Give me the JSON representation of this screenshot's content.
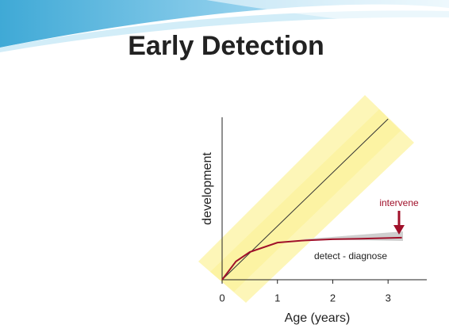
{
  "chart_data": {
    "type": "line",
    "title": "Early Detection",
    "xlabel": "Age (years)",
    "ylabel": "development",
    "xlim": [
      0,
      3.7
    ],
    "ylim": [
      0,
      2.93
    ],
    "xticks": [
      0,
      1,
      2,
      3
    ],
    "series": [
      {
        "color": "#333333",
        "x": [
          0,
          3
        ],
        "values": [
          0,
          2.9
        ]
      },
      {
        "color": "#a0102a",
        "x": [
          0,
          0.25,
          0.5,
          1,
          1.5,
          2,
          2.5,
          3.25
        ],
        "values": [
          0,
          0.33,
          0.5,
          0.67,
          0.71,
          0.73,
          0.74,
          0.76
        ]
      }
    ],
    "annotations": [
      "intervene",
      "detect - diagnose"
    ]
  }
}
